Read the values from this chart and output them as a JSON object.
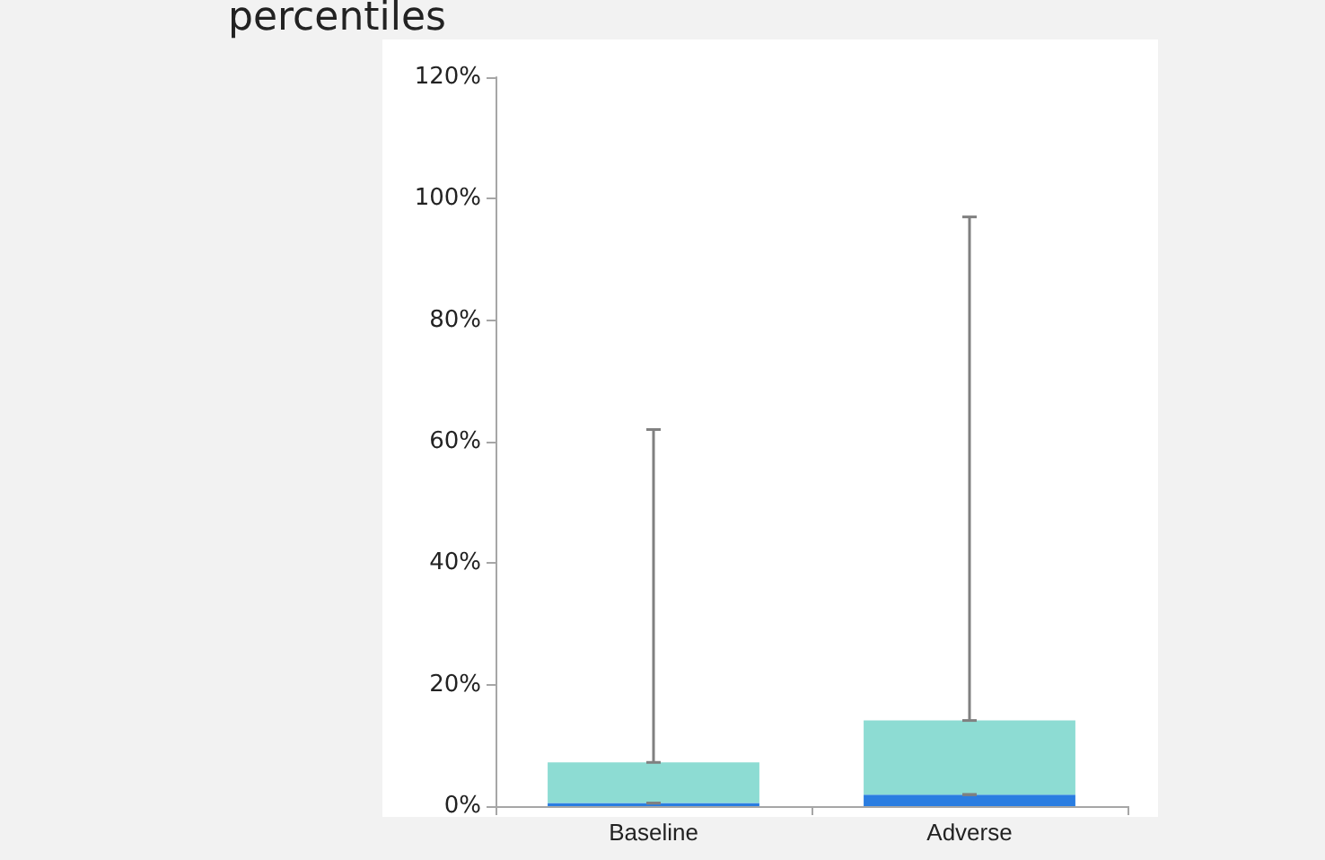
{
  "chart_data": {
    "type": "bar",
    "title": "percentiles",
    "stacked": true,
    "categories": [
      "Baseline",
      "Adverse"
    ],
    "series": [
      {
        "color": "#2a7de1",
        "values": [
          0.5,
          1.9
        ],
        "errors": [
          [
            0.5,
            0.5
          ],
          [
            1.9,
            1.9
          ]
        ]
      },
      {
        "color": "#8ddcd3",
        "values": [
          6.7,
          12.2
        ],
        "errors": [
          [
            7.2,
            62
          ],
          [
            14.1,
            97
          ]
        ]
      }
    ],
    "ylim": [
      0,
      120
    ],
    "yticks": [
      {
        "value": 0,
        "label": "0%"
      },
      {
        "value": 20,
        "label": "20%"
      },
      {
        "value": 40,
        "label": "40%"
      },
      {
        "value": 60,
        "label": "60%"
      },
      {
        "value": 80,
        "label": "80%"
      },
      {
        "value": 100,
        "label": "100%"
      },
      {
        "value": 120,
        "label": "120%"
      }
    ],
    "grid": false
  }
}
